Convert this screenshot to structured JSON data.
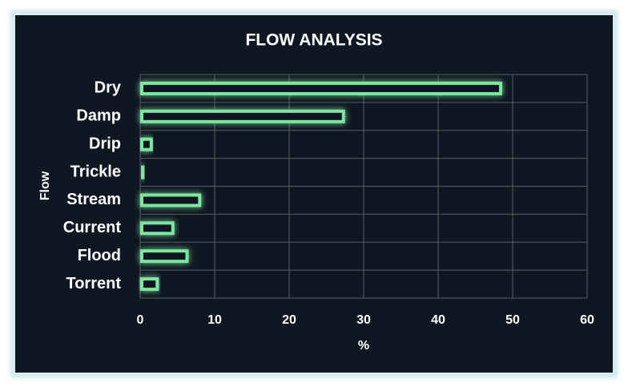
{
  "chart_data": {
    "type": "bar",
    "title": "FLOW ANALYSIS",
    "x_label": "%",
    "y_label": "Flow",
    "categories": [
      "Dry",
      "Damp",
      "Drip",
      "Trickle",
      "Stream",
      "Current",
      "Flood",
      "Torrent"
    ],
    "values": [
      48.6,
      27.5,
      1.7,
      0.7,
      8.2,
      4.6,
      6.5,
      2.5
    ],
    "color": "#7fe6a0",
    "xlim": [
      0,
      60
    ],
    "xticks": [
      0,
      10,
      20,
      30,
      40,
      50,
      60
    ],
    "grid": true
  }
}
